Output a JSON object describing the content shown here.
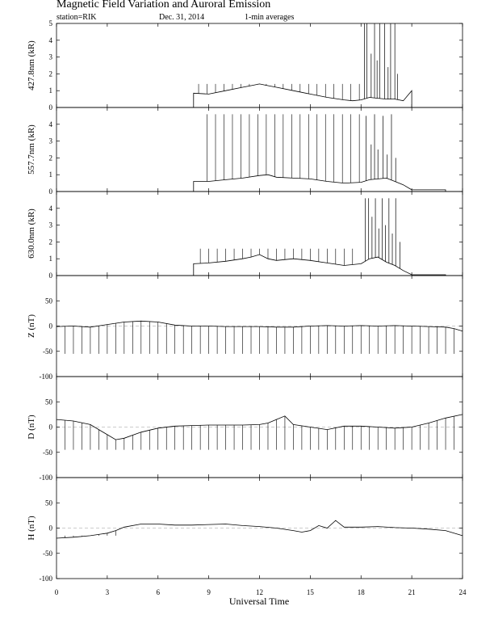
{
  "header": {
    "title": "Magnetic Field Variation and Auroral Emission",
    "station": "station=RIK",
    "date": "Dec. 31, 2014",
    "averaging": "1-min averages"
  },
  "chart_data": {
    "type": "line",
    "title": "Magnetic Field Variation and Auroral Emission",
    "xlabel": "Universal Time",
    "xlim": [
      0,
      24
    ],
    "xticks": [
      0,
      3,
      6,
      9,
      12,
      15,
      18,
      21,
      24
    ],
    "x_tick_labels": [
      "0",
      "3",
      "6",
      "9",
      "12",
      "15",
      "18",
      "21",
      "24"
    ],
    "grid": false,
    "panels": [
      {
        "name": "427.8nm",
        "ylabel": "427.8nm (kR)",
        "ylim": [
          0,
          5
        ],
        "yticks": [
          0,
          1,
          2,
          3,
          4,
          5
        ],
        "y_tick_labels": [
          "0",
          "1",
          "2",
          "3",
          "4",
          "5"
        ],
        "dashed_zero": false,
        "data_start": 8.1,
        "data_end": 21.0,
        "x": [
          8.1,
          9,
          10,
          11,
          11.5,
          12,
          12.5,
          13,
          14,
          15,
          16,
          17,
          17.5,
          18,
          18.5,
          19,
          19.5,
          20,
          20.5,
          21.0
        ],
        "y": [
          0.85,
          0.8,
          1.0,
          1.2,
          1.3,
          1.4,
          1.3,
          1.2,
          1.0,
          0.8,
          0.6,
          0.45,
          0.4,
          0.45,
          0.6,
          0.55,
          0.5,
          0.5,
          0.4,
          1.0
        ],
        "spike_times": [
          8.4,
          8.9,
          9.4,
          9.9,
          10.4,
          10.9,
          11.4,
          11.9,
          12.4,
          12.9,
          13.4,
          13.9,
          14.4,
          14.9,
          15.4,
          15.9,
          16.4,
          16.9,
          17.4,
          17.9
        ],
        "spike_peak": 1.4,
        "burst_times": [
          18.2,
          18.35,
          18.6,
          18.8,
          18.95,
          19.1,
          19.4,
          19.6,
          19.75,
          20.0,
          20.15
        ],
        "burst_peaks": [
          5,
          5,
          3.2,
          5,
          2.8,
          5,
          5,
          2.4,
          5,
          5,
          2.0
        ]
      },
      {
        "name": "557.7nm",
        "ylabel": "557.7nm (kR)",
        "ylim": [
          0,
          5
        ],
        "yticks": [
          0,
          1,
          2,
          3,
          4
        ],
        "y_tick_labels": [
          "0",
          "1",
          "2",
          "3",
          "4"
        ],
        "dashed_zero": false,
        "data_start": 8.1,
        "data_end": 23.0,
        "x": [
          8.1,
          9,
          10,
          11,
          12,
          12.5,
          13,
          14,
          15,
          16,
          17,
          18,
          18.5,
          19,
          19.5,
          20,
          20.5,
          21,
          21.5,
          22,
          22.5,
          23.0
        ],
        "y": [
          0.6,
          0.6,
          0.7,
          0.8,
          0.95,
          1.0,
          0.85,
          0.8,
          0.75,
          0.6,
          0.5,
          0.55,
          0.7,
          0.75,
          0.8,
          0.6,
          0.4,
          0.1,
          0.1,
          0.1,
          0.1,
          0.1
        ],
        "spike_times": [
          8.9,
          9.4,
          9.9,
          10.4,
          10.9,
          11.4,
          11.9,
          12.4,
          12.9,
          13.4,
          13.9,
          14.4,
          14.9,
          15.4,
          15.9,
          16.4,
          16.9,
          17.4,
          17.9
        ],
        "spike_peak": 4.6,
        "burst_times": [
          18.3,
          18.6,
          18.8,
          19.0,
          19.3,
          19.55,
          19.8,
          20.05
        ],
        "burst_peaks": [
          4.5,
          2.8,
          4.6,
          2.5,
          4.5,
          2.2,
          4.6,
          2.0
        ]
      },
      {
        "name": "630.0nm",
        "ylabel": "630.0nm (kR)",
        "ylim": [
          0,
          5
        ],
        "yticks": [
          0,
          1,
          2,
          3,
          4
        ],
        "y_tick_labels": [
          "0",
          "1",
          "2",
          "3",
          "4"
        ],
        "dashed_zero": false,
        "data_start": 8.1,
        "data_end": 23.0,
        "x": [
          8.1,
          9,
          10,
          11,
          11.5,
          12,
          12.5,
          13,
          14,
          15,
          16,
          17,
          18,
          18.5,
          19,
          19.5,
          20,
          20.5,
          21,
          21.5,
          22,
          23.0
        ],
        "y": [
          0.7,
          0.75,
          0.85,
          1.0,
          1.1,
          1.25,
          1.0,
          0.9,
          1.0,
          0.9,
          0.75,
          0.6,
          0.7,
          1.0,
          1.1,
          0.8,
          0.6,
          0.3,
          0.05,
          0.05,
          0.05,
          0.05
        ],
        "spike_times": [
          8.5,
          9.0,
          9.5,
          10.0,
          10.5,
          11.0,
          11.5,
          12.0,
          12.5,
          13.0,
          13.5,
          14.0,
          14.5,
          15.0,
          15.5,
          16.0,
          16.5,
          17.0,
          17.5
        ],
        "spike_peak": 1.6,
        "burst_times": [
          18.25,
          18.45,
          18.65,
          18.85,
          19.05,
          19.25,
          19.45,
          19.65,
          19.85,
          20.05,
          20.3
        ],
        "burst_peaks": [
          4.6,
          4.6,
          3.5,
          4.6,
          2.8,
          4.6,
          3.0,
          4.6,
          2.5,
          4.6,
          2.0
        ]
      },
      {
        "name": "Z",
        "ylabel": "Z (nT)",
        "ylim": [
          -100,
          100
        ],
        "yticks": [
          -100,
          -50,
          0,
          50
        ],
        "y_tick_labels": [
          "-100",
          "-50",
          "0",
          "50"
        ],
        "dashed_zero": true,
        "data_start": 0,
        "data_end": 24,
        "x": [
          0,
          1,
          2,
          3,
          4,
          5,
          6,
          7,
          8,
          9,
          10,
          11,
          12,
          13,
          14,
          15,
          16,
          17,
          18,
          19,
          20,
          21,
          22,
          23,
          23.5,
          24
        ],
        "y": [
          -1,
          0,
          -2,
          3,
          8,
          10,
          8,
          2,
          0,
          0,
          -1,
          -1,
          -1,
          -2,
          -2,
          0,
          1,
          0,
          1,
          0,
          1,
          0,
          -1,
          -2,
          -5,
          -10
        ],
        "spike_times": [
          0.5,
          1.0,
          1.5,
          2.0,
          2.5,
          3.0,
          3.5,
          4.0,
          4.5,
          5.0,
          5.5,
          6.0,
          6.5,
          7.0,
          7.5,
          8.0,
          8.5,
          9.0,
          9.5,
          10.0,
          10.5,
          11.0,
          11.5,
          12.0,
          12.5,
          13.0,
          13.5,
          14.0,
          14.5,
          15.0,
          15.5,
          16.0,
          16.5,
          17.0,
          17.5,
          18.0,
          18.5,
          19.0,
          19.5,
          20.0,
          20.5,
          21.0,
          21.5,
          22.0,
          22.5,
          23.0,
          23.5
        ],
        "spike_peak": -55
      },
      {
        "name": "D",
        "ylabel": "D (nT)",
        "ylim": [
          -100,
          100
        ],
        "yticks": [
          -100,
          -50,
          0,
          50
        ],
        "y_tick_labels": [
          "-100",
          "-50",
          "0",
          "50"
        ],
        "dashed_zero": true,
        "data_start": 0,
        "data_end": 24,
        "x": [
          0,
          1,
          2,
          3,
          3.5,
          4,
          5,
          6,
          7,
          8,
          9,
          10,
          11,
          12,
          12.5,
          13,
          13.5,
          14,
          15,
          16,
          17,
          18,
          19,
          20,
          21,
          22,
          23,
          24
        ],
        "y": [
          15,
          12,
          5,
          -15,
          -25,
          -22,
          -10,
          -2,
          2,
          3,
          4,
          4,
          4,
          5,
          8,
          15,
          22,
          5,
          0,
          -5,
          2,
          2,
          0,
          -2,
          0,
          8,
          18,
          25
        ],
        "spike_times": [
          0.5,
          1.0,
          1.5,
          2.0,
          2.5,
          3.0,
          3.5,
          4.0,
          4.5,
          5.0,
          5.5,
          6.0,
          6.5,
          7.0,
          7.5,
          8.0,
          8.5,
          9.0,
          9.5,
          10.0,
          10.5,
          11.0,
          11.5,
          12.0,
          12.5,
          13.0,
          13.5,
          14.0,
          14.5,
          15.0,
          15.5,
          16.0,
          16.5,
          17.0,
          17.5,
          18.0,
          18.5,
          19.0,
          19.5,
          20.0,
          20.5,
          21.0,
          21.5,
          22.0,
          22.5,
          23.0,
          23.5
        ],
        "spike_peak": -45
      },
      {
        "name": "H",
        "ylabel": "H (nT)",
        "ylim": [
          -100,
          100
        ],
        "yticks": [
          -100,
          -50,
          0,
          50
        ],
        "y_tick_labels": [
          "-100",
          "-50",
          "0",
          "50"
        ],
        "dashed_zero": true,
        "data_start": 0,
        "data_end": 24,
        "x": [
          0,
          1,
          2,
          3,
          3.5,
          4,
          5,
          6,
          7,
          8,
          9,
          10,
          11,
          12,
          13,
          14,
          14.5,
          15,
          15.5,
          16,
          16.5,
          17,
          18,
          19,
          20,
          21,
          22,
          23,
          24
        ],
        "y": [
          -20,
          -18,
          -15,
          -10,
          -5,
          2,
          8,
          8,
          6,
          6,
          7,
          8,
          5,
          3,
          0,
          -5,
          -8,
          -5,
          5,
          0,
          15,
          2,
          2,
          3,
          1,
          0,
          -2,
          -5,
          -15
        ],
        "spike_times": [
          0.5,
          1.0,
          1.5,
          2.0,
          2.5,
          3.0,
          3.5
        ],
        "spike_peak": -15
      }
    ]
  }
}
